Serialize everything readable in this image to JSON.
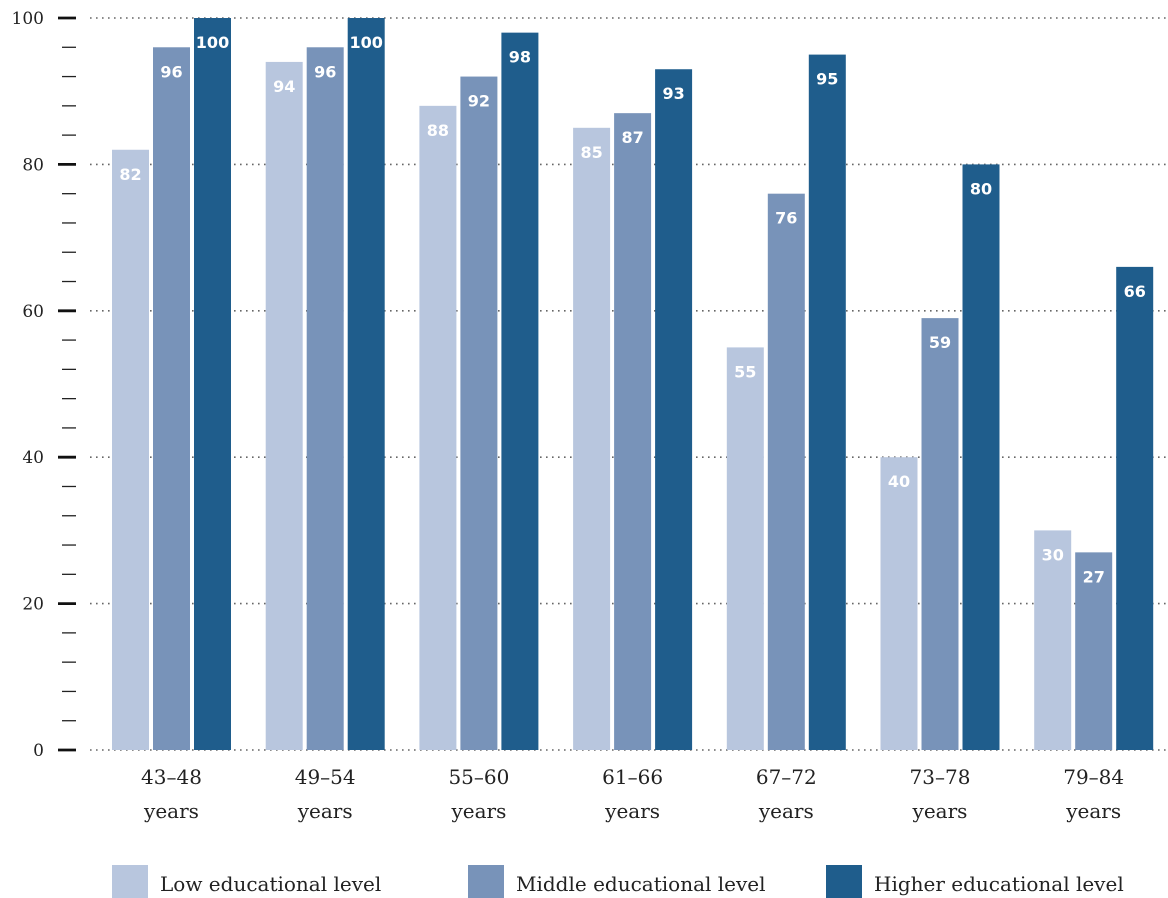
{
  "chart_data": {
    "type": "bar",
    "categories": [
      [
        "43–48",
        "years"
      ],
      [
        "49–54",
        "years"
      ],
      [
        "55–60",
        "years"
      ],
      [
        "61–66",
        "years"
      ],
      [
        "67–72",
        "years"
      ],
      [
        "73–78",
        "years"
      ],
      [
        "79–84",
        "years"
      ]
    ],
    "series": [
      {
        "name": "Low educational level",
        "color": "#b8c6de",
        "values": [
          82,
          94,
          88,
          85,
          55,
          40,
          30
        ]
      },
      {
        "name": "Middle educational level",
        "color": "#7893b9",
        "values": [
          96,
          96,
          92,
          87,
          76,
          59,
          27
        ]
      },
      {
        "name": "Higher educational level",
        "color": "#1f5d8c",
        "values": [
          100,
          100,
          98,
          93,
          95,
          80,
          66
        ]
      }
    ],
    "ylim": [
      0,
      100
    ],
    "yticks": [
      0,
      20,
      40,
      60,
      80,
      100
    ],
    "minor_tick_step": 4,
    "grid": "dotted horizontal at major ticks",
    "legend_position": "bottom",
    "title": "",
    "xlabel": "",
    "ylabel": ""
  }
}
